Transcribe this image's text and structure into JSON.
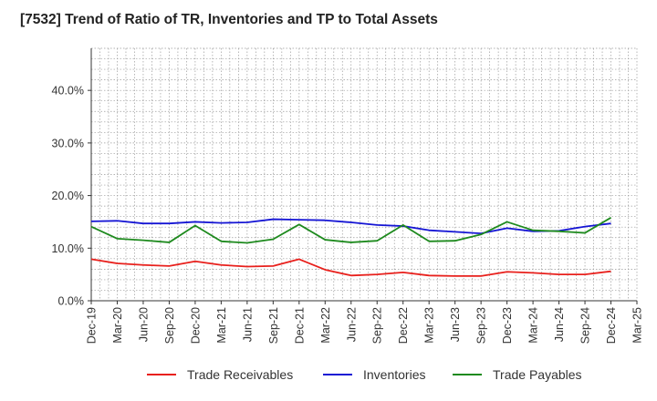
{
  "title": "[7532]  Trend of Ratio of TR, Inventories and TP to Total Assets",
  "chart_data": {
    "type": "line",
    "title": "[7532]  Trend of Ratio of TR, Inventories and TP to Total Assets",
    "xlabel": "",
    "ylabel": "",
    "ylim": [
      0,
      48
    ],
    "grid": true,
    "legend_position": "bottom",
    "y_ticks": [
      "0.0%",
      "10.0%",
      "20.0%",
      "30.0%",
      "40.0%"
    ],
    "y_tick_values": [
      0,
      10,
      20,
      30,
      40
    ],
    "x_tick_labels": [
      "Dec-19",
      "Mar-20",
      "Jun-20",
      "Sep-20",
      "Dec-20",
      "Mar-21",
      "Jun-21",
      "Sep-21",
      "Dec-21",
      "Mar-22",
      "Jun-22",
      "Sep-22",
      "Dec-22",
      "Mar-23",
      "Jun-23",
      "Sep-23",
      "Dec-23",
      "Mar-24",
      "Jun-24",
      "Sep-24",
      "Dec-24",
      "Mar-25"
    ],
    "categories": [
      "Dec-19",
      "Mar-20",
      "Jun-20",
      "Sep-20",
      "Dec-20",
      "Mar-21",
      "Jun-21",
      "Sep-21",
      "Dec-21",
      "Mar-22",
      "Jun-22",
      "Sep-22",
      "Dec-22",
      "Mar-23",
      "Jun-23",
      "Sep-23",
      "Dec-23",
      "Mar-24",
      "Jun-24",
      "Sep-24",
      "Dec-24"
    ],
    "series": [
      {
        "name": "Trade Receivables",
        "color": "#e8201c",
        "values": [
          7.9,
          7.1,
          6.8,
          6.6,
          7.5,
          6.8,
          6.5,
          6.6,
          7.9,
          5.9,
          4.8,
          5.0,
          5.4,
          4.8,
          4.7,
          4.7,
          5.5,
          5.3,
          5.0,
          5.0,
          5.6
        ]
      },
      {
        "name": "Inventories",
        "color": "#1515d4",
        "values": [
          15.1,
          15.2,
          14.7,
          14.7,
          15.0,
          14.8,
          14.9,
          15.5,
          15.4,
          15.3,
          14.9,
          14.4,
          14.2,
          13.4,
          13.1,
          12.8,
          13.8,
          13.2,
          13.3,
          14.1,
          14.7
        ]
      },
      {
        "name": "Trade Payables",
        "color": "#1e8a1e",
        "values": [
          14.1,
          11.8,
          11.5,
          11.1,
          14.3,
          11.3,
          11.0,
          11.7,
          14.5,
          11.6,
          11.1,
          11.4,
          14.4,
          11.3,
          11.4,
          12.6,
          15.0,
          13.4,
          13.2,
          12.9,
          15.8
        ]
      }
    ]
  }
}
